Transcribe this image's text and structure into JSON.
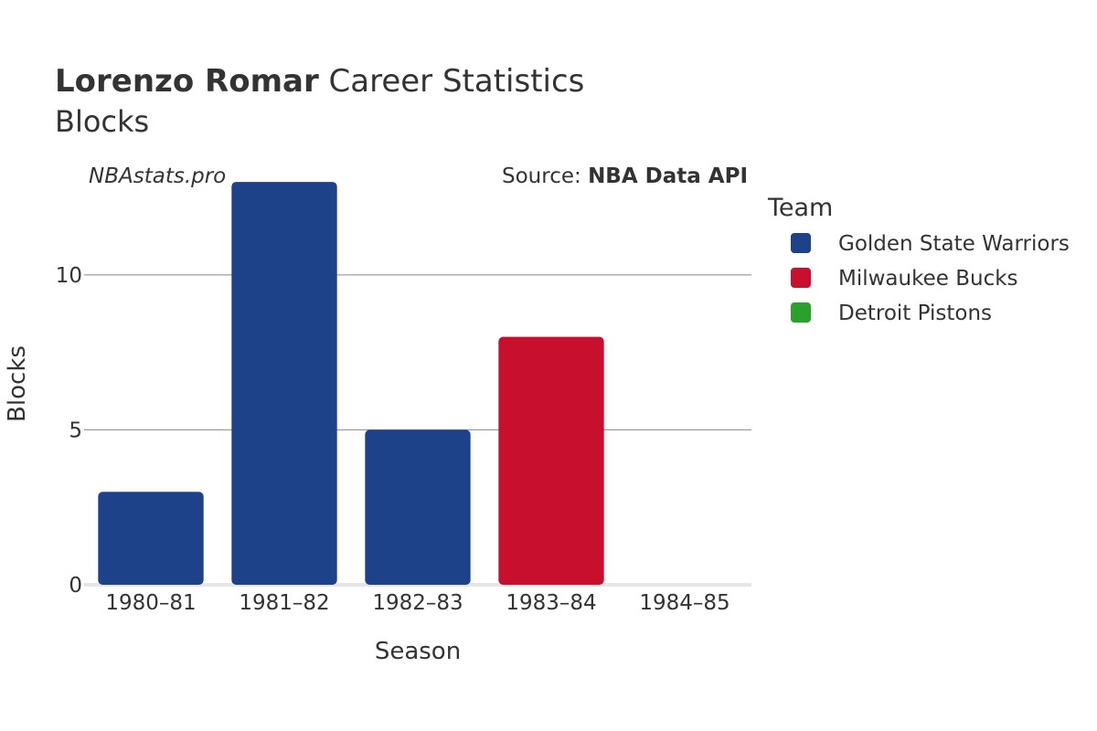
{
  "title": {
    "bold": "Lorenzo Romar",
    "rest": " Career Statistics",
    "subtitle": "Blocks"
  },
  "watermark": "NBAstats.pro",
  "source": {
    "prefix": "Source: ",
    "name": "NBA Data API"
  },
  "legend": {
    "title": "Team",
    "items": [
      {
        "label": "Golden State Warriors",
        "color": "#1d428a"
      },
      {
        "label": "Milwaukee Bucks",
        "color": "#c8102e"
      },
      {
        "label": "Detroit Pistons",
        "color": "#2ca02c"
      }
    ]
  },
  "chart_data": {
    "type": "bar",
    "categories": [
      "1980–81",
      "1981–82",
      "1982–83",
      "1983–84",
      "1984–85"
    ],
    "values": [
      3,
      13,
      5,
      8,
      0
    ],
    "bar_teams": [
      "Golden State Warriors",
      "Golden State Warriors",
      "Golden State Warriors",
      "Milwaukee Bucks",
      "Detroit Pistons"
    ],
    "xlabel": "Season",
    "ylabel": "Blocks",
    "ylim": [
      0,
      13.68
    ],
    "yticks": [
      0,
      5,
      10
    ],
    "ytick_labels": [
      "0",
      "5",
      "10"
    ],
    "grid": true,
    "legend_position": "right"
  }
}
